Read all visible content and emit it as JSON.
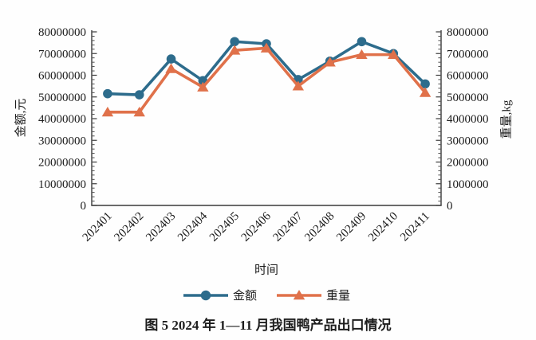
{
  "figure": {
    "caption": "图 5 2024 年 1—11 月我国鸭产品出口情况"
  },
  "chart_data": {
    "type": "line",
    "title": "",
    "xlabel": "时间",
    "ylabel_left": "金额,元",
    "ylabel_right": "重量,kg",
    "categories": [
      "202401",
      "202402",
      "202403",
      "202404",
      "202405",
      "202406",
      "202407",
      "202408",
      "202409",
      "202410",
      "202411"
    ],
    "series": [
      {
        "name": "金额",
        "axis": "left",
        "marker": "circle",
        "color": "#2d6c8c",
        "values": [
          51500000,
          51000000,
          67500000,
          57500000,
          75500000,
          74500000,
          58000000,
          66500000,
          75500000,
          70000000,
          56000000
        ]
      },
      {
        "name": "重量",
        "axis": "right",
        "marker": "triangle",
        "color": "#e0714a",
        "values": [
          4300000,
          4300000,
          6300000,
          5450000,
          7150000,
          7250000,
          5500000,
          6600000,
          6950000,
          6950000,
          5200000
        ]
      }
    ],
    "ylim_left": [
      0,
      80000000
    ],
    "ylim_right": [
      0,
      8000000
    ],
    "yticks_left": [
      0,
      10000000,
      20000000,
      30000000,
      40000000,
      50000000,
      60000000,
      70000000,
      80000000
    ],
    "yticks_right": [
      0,
      1000000,
      2000000,
      3000000,
      4000000,
      5000000,
      6000000,
      7000000,
      8000000
    ],
    "y_minor_step_left": 2000000,
    "y_minor_step_right": 200000,
    "grid": false,
    "legend_position": "bottom",
    "axis_color": "#3a3a3a",
    "text_color": "#1d1d1d"
  }
}
